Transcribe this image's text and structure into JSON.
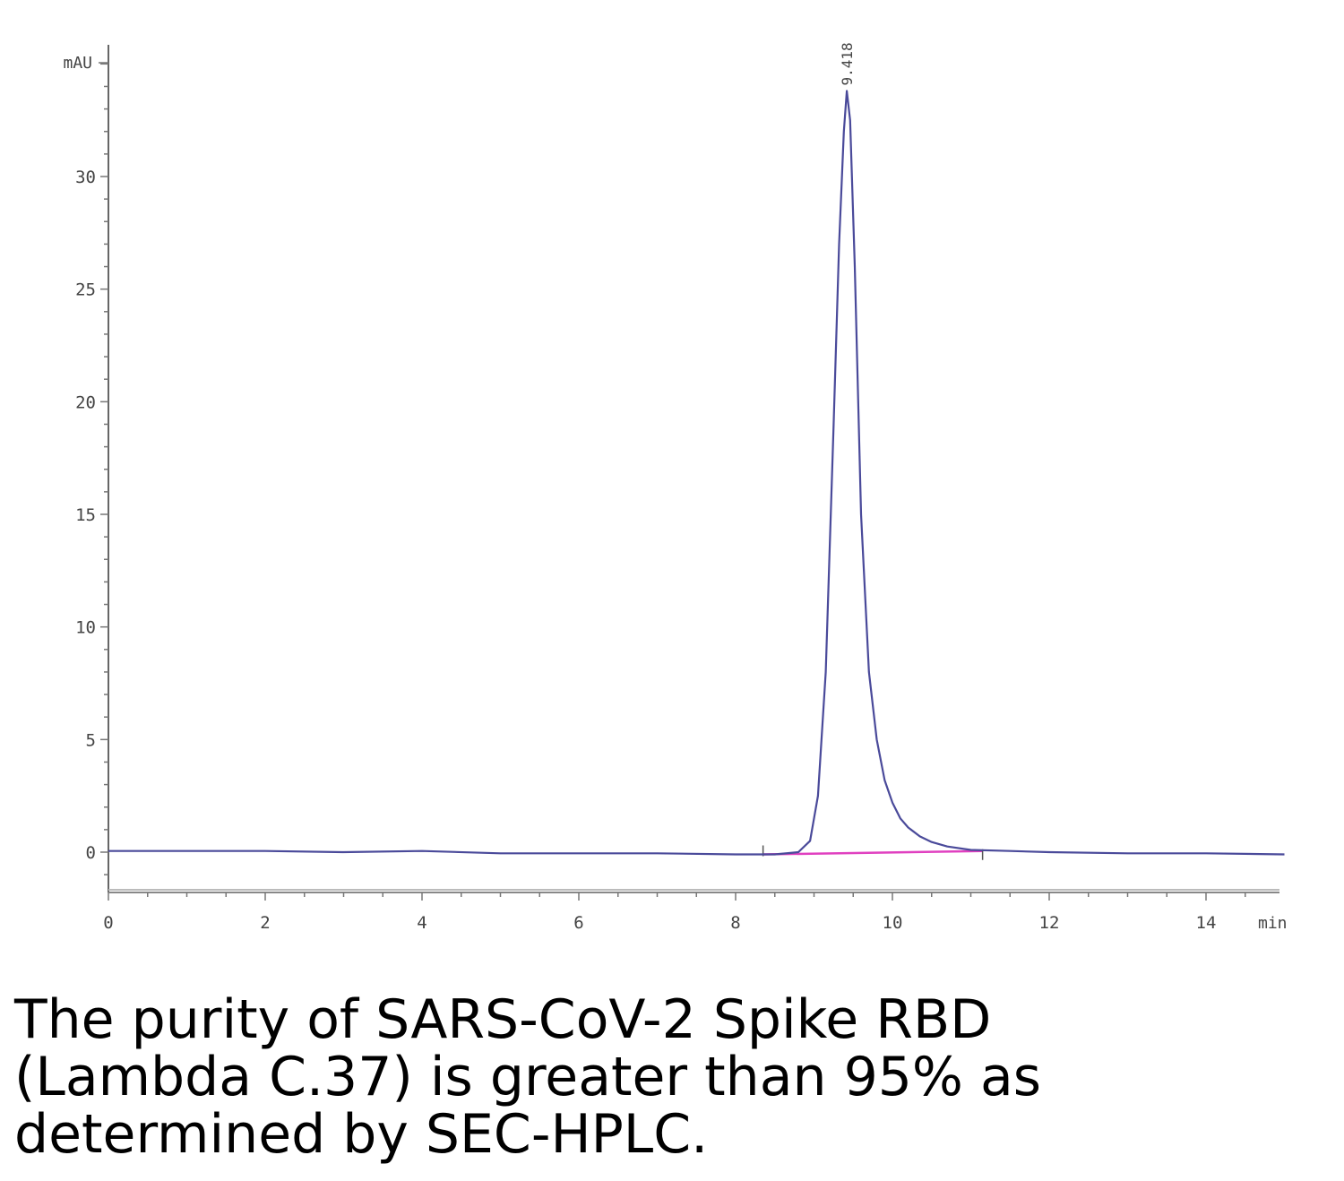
{
  "chart_data": {
    "type": "line",
    "title": "",
    "xlabel": "min",
    "ylabel": "mAU",
    "xlim": [
      0,
      15
    ],
    "ylim": [
      -1.8,
      35
    ],
    "xticks": [
      0,
      2,
      4,
      6,
      8,
      10,
      12,
      14
    ],
    "yticks": [
      0,
      5,
      10,
      15,
      20,
      25,
      30
    ],
    "grid": false,
    "legend": "none",
    "series": [
      {
        "color": "#4a4a9a",
        "x": [
          0,
          1,
          2,
          3,
          4,
          5,
          6,
          7,
          8,
          8.5,
          8.8,
          8.95,
          9.05,
          9.15,
          9.25,
          9.32,
          9.38,
          9.418,
          9.46,
          9.52,
          9.6,
          9.7,
          9.8,
          9.9,
          10.0,
          10.1,
          10.2,
          10.35,
          10.5,
          10.7,
          11.0,
          11.5,
          12.0,
          13.0,
          14.0,
          15.0
        ],
        "y": [
          0.05,
          0.05,
          0.05,
          0.0,
          0.05,
          -0.05,
          -0.05,
          -0.05,
          -0.1,
          -0.1,
          0.0,
          0.5,
          2.5,
          8.0,
          19.0,
          27.0,
          32.0,
          33.8,
          32.5,
          26.0,
          15.0,
          8.0,
          5.0,
          3.2,
          2.2,
          1.5,
          1.1,
          0.7,
          0.45,
          0.25,
          0.1,
          0.05,
          0.0,
          -0.05,
          -0.05,
          -0.1
        ]
      }
    ],
    "baseline": {
      "color": "#e040c0",
      "x": [
        8.35,
        11.15
      ],
      "y": [
        -0.1,
        0.05
      ]
    },
    "peaks": [
      {
        "x": 9.418,
        "y": 33.8,
        "label": "9.418"
      }
    ]
  },
  "caption": "The purity of SARS-CoV-2 Spike RBD (Lambda C.37) is greater than 95% as determined by SEC-HPLC."
}
